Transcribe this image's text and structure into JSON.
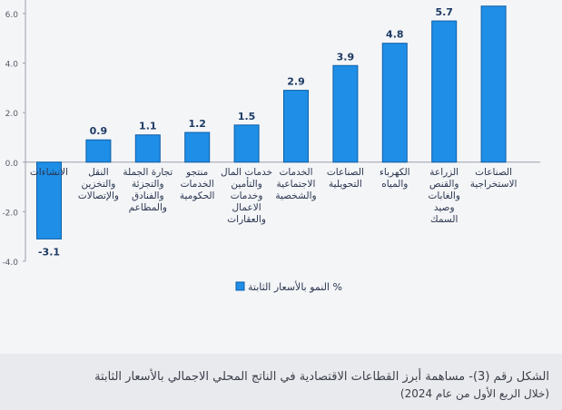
{
  "chart_data": {
    "type": "bar",
    "categories": [
      "الانشاءات",
      "النقل والتخزين والإتصالات",
      "تجارة الجملة والتجزئة والفنادق والمطاعم",
      "منتجو الخدمات الحكومية",
      "خدمات المال والتأمين وخدمات الاعمال والعقارات",
      "الخدمات الاجتماعية والشخصية",
      "الصناعات التحويلية",
      "الكهرباء والمياه",
      "الزراعة والقنص والغابات وصيد السمك",
      "الصناعات الاستخراجية"
    ],
    "category_lines": [
      [
        "الانشاءات"
      ],
      [
        "النقل",
        "والتخزين",
        "والإتصالات"
      ],
      [
        "تجارة الجملة",
        "والتجزئة",
        "والفنادق",
        "والمطاعم"
      ],
      [
        "منتجو",
        "الخدمات",
        "الحكومية"
      ],
      [
        "خدمات المال",
        "والتأمين",
        "وخدمات",
        "الاعمال",
        "والعقارات"
      ],
      [
        "الخدمات",
        "الاجتماعية",
        "والشخصية"
      ],
      [
        "الصناعات",
        "التحويلية"
      ],
      [
        "الكهرباء",
        "والمياه"
      ],
      [
        "الزراعة",
        "والقنص",
        "والغابات",
        "وصيد",
        "السمك"
      ],
      [
        "الصناعات",
        "الاستخراجية"
      ]
    ],
    "series": [
      {
        "name": "النمو بالأسعار الثابتة %",
        "values": [
          -3.1,
          0.9,
          1.1,
          1.2,
          1.5,
          2.9,
          3.9,
          4.8,
          5.7,
          6.3
        ]
      }
    ],
    "data_labels": [
      "-3.1",
      "0.9",
      "1.1",
      "1.2",
      "1.5",
      "2.9",
      "3.9",
      "4.8",
      "5.7",
      ""
    ],
    "ylim": [
      -4.0,
      6.4
    ],
    "yticks": [
      "6.0",
      "4.0",
      "2.0",
      "0.0",
      "-2.0",
      "-4.0"
    ],
    "grid": false,
    "legend": "bottom-center",
    "colors": {
      "bar": "#1f8ee6",
      "bar_edge": "#0d5fa8",
      "label": "#1c3a63"
    }
  },
  "caption": {
    "line1": "الشكل رقم (3)- مساهمة أبرز القطاعات الاقتصادية في الناتج المحلي الاجمالي بالأسعار الثابتة",
    "line2": "(خلال الربع الأول من عام 2024)"
  }
}
